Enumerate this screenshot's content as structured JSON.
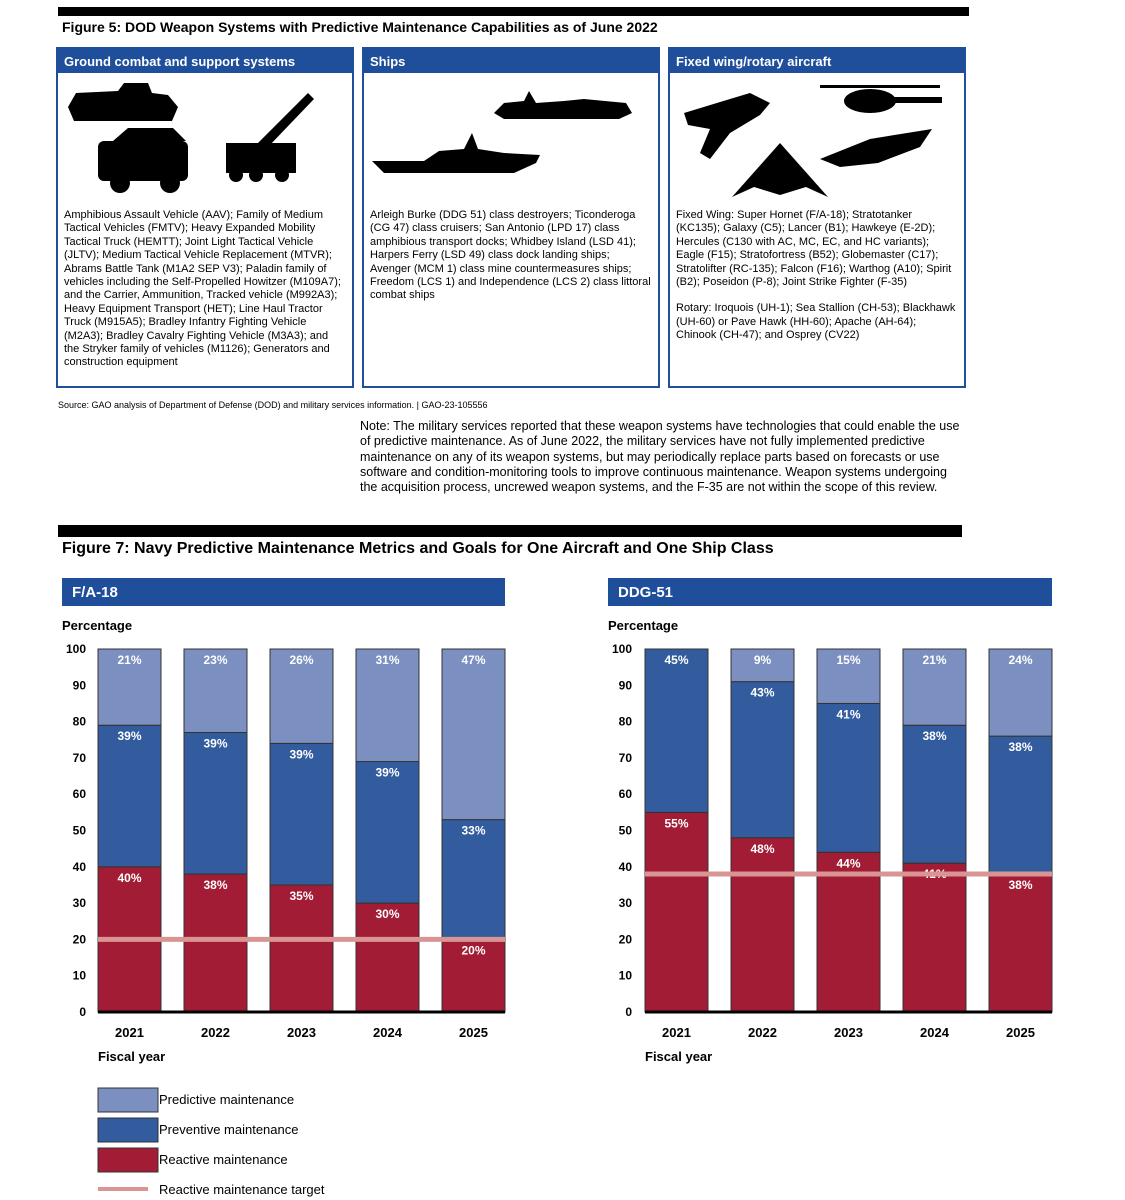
{
  "figure5": {
    "title": "Figure 5: DOD Weapon Systems with Predictive Maintenance Capabilities as of June 2022",
    "panels": [
      {
        "heading": "Ground combat and support systems",
        "paragraphs": [
          "Amphibious Assault Vehicle (AAV); Family of Medium Tactical Vehicles (FMTV); Heavy Expanded Mobility Tactical Truck (HEMTT); Joint Light Tactical Vehicle (JLTV); Medium Tactical Vehicle Replacement (MTVR); Abrams Battle Tank (M1A2 SEP V3); Paladin family of vehicles including the Self-Propelled Howitzer (M109A7); and the Carrier, Ammunition, Tracked vehicle (M992A3); Heavy Equipment Transport (HET); Line Haul Tractor Truck (M915A5); Bradley Infantry Fighting Vehicle (M2A3); Bradley Cavalry Fighting Vehicle (M3A3); and the Stryker family of vehicles (M1126); Generators and construction equipment"
        ]
      },
      {
        "heading": "Ships",
        "paragraphs": [
          "Arleigh Burke (DDG 51) class destroyers; Ticonderoga (CG 47) class cruisers; San Antonio (LPD 17) class amphibious transport docks; Whidbey Island (LSD 41); Harpers Ferry (LSD 49) class dock landing ships; Avenger (MCM 1) class mine countermeasures ships; Freedom (LCS 1) and Independence (LCS 2) class littoral combat ships"
        ]
      },
      {
        "heading": "Fixed wing/rotary aircraft",
        "paragraphs": [
          "Fixed Wing: Super Hornet (F/A-18); Stratotanker (KC135); Galaxy (C5); Lancer (B1); Hawkeye (E-2D); Hercules (C130 with AC, MC, EC, and HC variants); Eagle (F15); Stratofortress (B52); Globemaster (C17); Stratolifter (RC-135); Falcon (F16); Warthog (A10); Spirit (B2); Poseidon (P-8); Joint Strike Fighter (F-35)",
          "Rotary: Iroquois (UH-1); Sea Stallion (CH-53); Blackhawk (UH-60) or Pave Hawk (HH-60); Apache (AH-64); Chinook (CH-47); and Osprey (CV22)"
        ]
      }
    ],
    "source": "Source: GAO analysis of Department of Defense (DOD) and military services information.  |  GAO-23-105556"
  },
  "note": "Note: The military services reported that these weapon systems have technologies that could enable the use of predictive maintenance. As of June 2022, the military services have not fully implemented predictive maintenance on any of its weapon systems, but may periodically replace parts based on forecasts or use software and condition-monitoring tools to improve continuous maintenance. Weapon systems undergoing the acquisition process, uncrewed weapon systems, and the F-35 are not within the scope of this review.",
  "figure7_title": "Figure 7: Navy Predictive Maintenance Metrics and Goals for One Aircraft and One Ship Class",
  "chart_data": [
    {
      "type": "stacked_bar",
      "title": "F/A-18",
      "y_label": "Percentage",
      "x_label": "Fiscal year",
      "categories": [
        "2021",
        "2022",
        "2023",
        "2024",
        "2025"
      ],
      "ylim": [
        0,
        100
      ],
      "yticks": [
        0,
        10,
        20,
        30,
        40,
        50,
        60,
        70,
        80,
        90,
        100
      ],
      "series": [
        {
          "name": "Reactive maintenance",
          "color": "#a31c35",
          "values": [
            40,
            38,
            35,
            30,
            20
          ],
          "value_labels": [
            "40%",
            "38%",
            "35%",
            "30%",
            "20%"
          ]
        },
        {
          "name": "Preventive maintenance",
          "color": "#335c9e",
          "values": [
            39,
            39,
            39,
            39,
            33
          ],
          "value_labels": [
            "39%",
            "39%",
            "39%",
            "39%",
            "33%"
          ]
        },
        {
          "name": "Predictive maintenance",
          "color": "#7b8fc0",
          "values": [
            21,
            23,
            26,
            31,
            47
          ],
          "value_labels": [
            "21%",
            "23%",
            "26%",
            "31%",
            "47%"
          ]
        }
      ],
      "target": {
        "name": "Reactive maintenance target",
        "value": 20,
        "color": "#d99593"
      }
    },
    {
      "type": "stacked_bar",
      "title": "DDG-51",
      "y_label": "Percentage",
      "x_label": "Fiscal year",
      "categories": [
        "2021",
        "2022",
        "2023",
        "2024",
        "2025"
      ],
      "ylim": [
        0,
        100
      ],
      "yticks": [
        0,
        10,
        20,
        30,
        40,
        50,
        60,
        70,
        80,
        90,
        100
      ],
      "series": [
        {
          "name": "Reactive maintenance",
          "color": "#a31c35",
          "values": [
            55,
            48,
            44,
            41,
            38
          ],
          "value_labels": [
            "55%",
            "48%",
            "44%",
            "41%",
            "38%"
          ]
        },
        {
          "name": "Preventive maintenance",
          "color": "#335c9e",
          "values": [
            45,
            43,
            41,
            38,
            38
          ],
          "value_labels": [
            "45%",
            "43%",
            "41%",
            "38%",
            "38%"
          ]
        },
        {
          "name": "Predictive maintenance",
          "color": "#7b8fc0",
          "values": [
            null,
            9,
            15,
            21,
            24
          ],
          "value_labels": [
            null,
            "9%",
            "15%",
            "21%",
            "24%"
          ]
        }
      ],
      "target": {
        "name": "Reactive maintenance target",
        "value": 38,
        "color": "#d99593"
      }
    }
  ]
}
